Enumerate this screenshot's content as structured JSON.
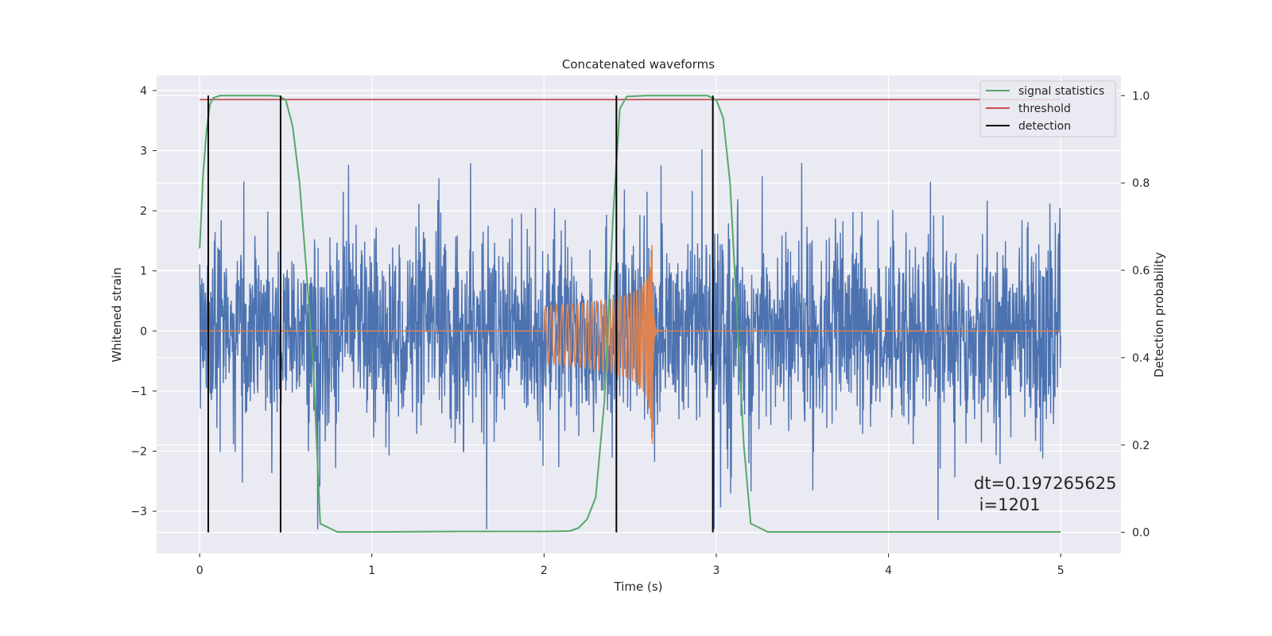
{
  "chart_data": {
    "type": "line",
    "title": "Concatenated waveforms",
    "xlabel": "Time (s)",
    "ylabel": "Whitened strain",
    "y2label": "Detection probability",
    "xlim": [
      -0.25,
      5.35
    ],
    "ylim": [
      -3.7,
      4.25
    ],
    "y2lim": [
      -0.048,
      1.046
    ],
    "x_ticks": [
      0,
      1,
      2,
      3,
      4,
      5
    ],
    "x_tick_labels": [
      "0",
      "1",
      "2",
      "3",
      "4",
      "5"
    ],
    "y_ticks": [
      -3,
      -2,
      -1,
      0,
      1,
      2,
      3,
      4
    ],
    "y_tick_labels": [
      "−3",
      "−2",
      "−1",
      "0",
      "1",
      "2",
      "3",
      "4"
    ],
    "y2_ticks": [
      0.0,
      0.2,
      0.4,
      0.6,
      0.8,
      1.0
    ],
    "y2_tick_labels": [
      "0.0",
      "0.2",
      "0.4",
      "0.6",
      "0.8",
      "1.0"
    ],
    "grid": true,
    "legend_position": "top-right",
    "legend": [
      {
        "label": "signal statistics",
        "color": "#55a868"
      },
      {
        "label": "threshold",
        "color": "#c44e52"
      },
      {
        "label": "detection",
        "color": "#000000"
      }
    ],
    "annotation": {
      "line1": "dt=0.197265625",
      "line2": " i=1201"
    },
    "series": [
      {
        "name": "whitened strain",
        "axis": "left",
        "color": "#4c72b0",
        "x_range": [
          0,
          5
        ],
        "envelope_max": 3.1,
        "envelope_min": -3.3,
        "typical_band": [
          -1.6,
          1.6
        ]
      },
      {
        "name": "injected waveform",
        "axis": "left",
        "color": "#dd8452",
        "x_range": [
          0,
          5
        ],
        "chirp_start": 2.0,
        "merger_time": 2.63,
        "amplitude_start": 0.42,
        "amplitude_peak": 1.5,
        "amplitude_min_peak": -1.95
      },
      {
        "name": "signal statistics",
        "axis": "right",
        "color": "#55a868",
        "x": [
          0.0,
          0.02,
          0.04,
          0.06,
          0.08,
          0.12,
          0.2,
          0.3,
          0.4,
          0.46,
          0.5,
          0.54,
          0.58,
          0.62,
          0.66,
          0.7,
          0.8,
          1.0,
          1.5,
          2.0,
          2.15,
          2.2,
          2.25,
          2.3,
          2.35,
          2.4,
          2.44,
          2.48,
          2.6,
          2.8,
          2.95,
          3.0,
          3.04,
          3.08,
          3.12,
          3.16,
          3.2,
          3.3,
          4.0,
          5.0
        ],
        "y": [
          0.65,
          0.82,
          0.92,
          0.98,
          0.995,
          1.0,
          1.0,
          1.0,
          1.0,
          0.999,
          0.99,
          0.93,
          0.8,
          0.6,
          0.38,
          0.02,
          0.001,
          0.001,
          0.002,
          0.002,
          0.003,
          0.01,
          0.03,
          0.08,
          0.3,
          0.72,
          0.97,
          0.998,
          1.0,
          1.0,
          1.0,
          0.99,
          0.95,
          0.8,
          0.5,
          0.2,
          0.02,
          0.001,
          0.001,
          0.001
        ]
      },
      {
        "name": "threshold",
        "axis": "right",
        "color": "#c44e52",
        "x": [
          0,
          5
        ],
        "y": [
          0.991,
          0.991
        ]
      }
    ],
    "detections": [
      0.05,
      0.47,
      2.42,
      2.98
    ]
  }
}
